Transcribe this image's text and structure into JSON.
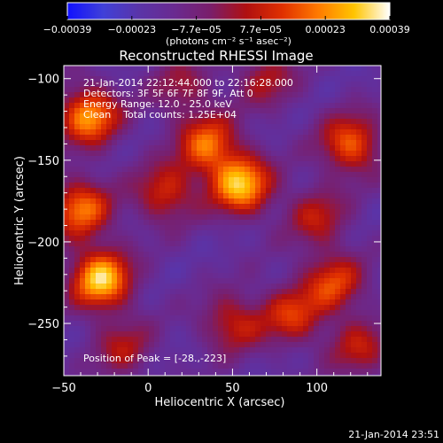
{
  "chart_data": {
    "type": "heatmap",
    "title": "Reconstructed RHESSI Image",
    "xlabel": "Heliocentric X (arcsec)",
    "ylabel": "Heliocentric Y (arcsec)",
    "xlim": [
      -50,
      138
    ],
    "ylim": [
      -282,
      -92
    ],
    "x_ticks": [
      -50,
      0,
      50,
      100
    ],
    "y_ticks": [
      -100,
      -150,
      -200,
      -250
    ],
    "x_tick_labels": [
      "−50",
      "0",
      "50",
      "100"
    ],
    "y_tick_labels": [
      "−100",
      "−150",
      "−200",
      "−250"
    ],
    "colorbar": {
      "range": [
        -0.00039,
        0.00039
      ],
      "tick_labels": [
        "−0.00039",
        "−0.00023",
        "−7.7e−05",
        "7.7e−05",
        "0.00023",
        "0.00039"
      ],
      "units": "(photons cm⁻² s⁻¹ asec⁻²)",
      "colormap": [
        "#1010ff",
        "#4040d8",
        "#5a34a8",
        "#6a2a90",
        "#7a1e6a",
        "#b01010",
        "#e03000",
        "#ff7a00",
        "#ffc400",
        "#ffffff"
      ]
    },
    "annotations": [
      "21-Jan-2014 22:12:44.000 to 22:16:28.000",
      "Detectors: 3F 5F 6F 7F 8F 9F, Att 0",
      "Energy Range: 12.0 - 25.0 keV",
      "Clean    Total counts: 1.25E+04",
      "Position of Peak = [-28.,-223]"
    ],
    "peak": [
      -28,
      -223
    ],
    "sources": [
      {
        "x": -28,
        "y": -223,
        "amp": 1.0
      },
      {
        "x": -35,
        "y": -123,
        "amp": 0.85
      },
      {
        "x": 55,
        "y": -165,
        "amp": 0.95
      },
      {
        "x": 35,
        "y": -140,
        "amp": 0.7
      },
      {
        "x": -40,
        "y": -180,
        "amp": 0.75
      },
      {
        "x": 10,
        "y": -170,
        "amp": 0.55
      },
      {
        "x": 120,
        "y": -140,
        "amp": 0.7
      },
      {
        "x": 110,
        "y": -225,
        "amp": 0.6
      },
      {
        "x": 85,
        "y": -245,
        "amp": 0.55
      },
      {
        "x": 50,
        "y": -250,
        "amp": 0.5
      },
      {
        "x": 125,
        "y": -265,
        "amp": 0.45
      },
      {
        "x": 70,
        "y": -100,
        "amp": 0.4
      },
      {
        "x": -15,
        "y": -265,
        "amp": 0.4
      },
      {
        "x": 100,
        "y": -185,
        "amp": 0.45
      },
      {
        "x": 20,
        "y": -105,
        "amp": 0.35
      }
    ]
  },
  "footer": {
    "timestamp": "21-Jan-2014 23:51"
  }
}
